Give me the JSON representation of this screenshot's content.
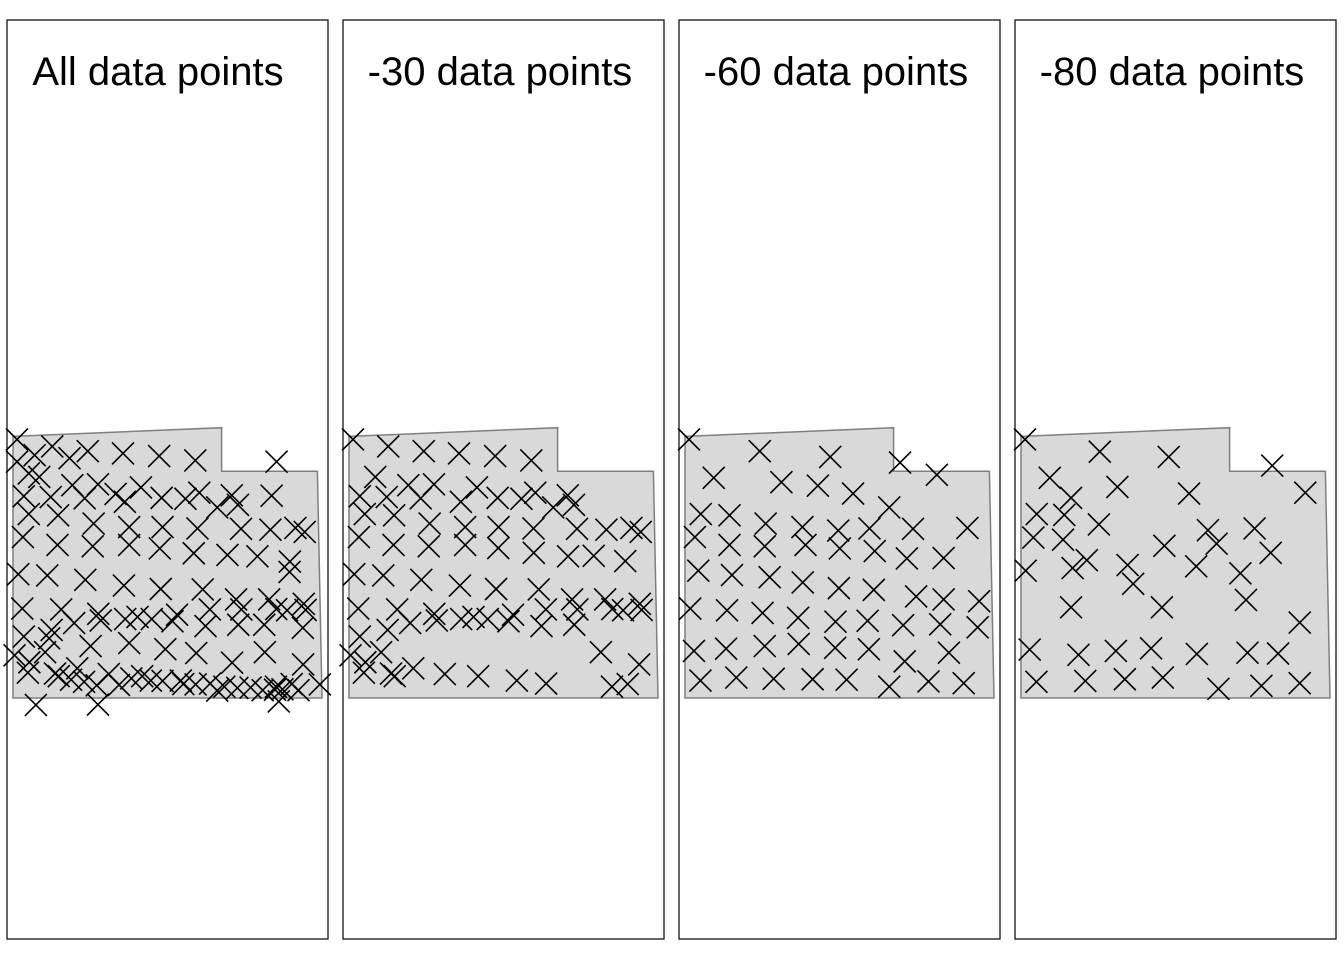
{
  "chart_data": {
    "type": "scatter",
    "marker": "x",
    "colors": {
      "region_fill": "#d9d9d9",
      "region_stroke": "#7f7f7f",
      "marker": "#000000",
      "frame": "#000000",
      "background": "#ffffff"
    },
    "xlim": [
      0,
      100
    ],
    "ylim": [
      0,
      100
    ],
    "region": [
      [
        0,
        60
      ],
      [
        67.5,
        62
      ],
      [
        67.5,
        52
      ],
      [
        98.5,
        52
      ],
      [
        100,
        0
      ],
      [
        0,
        0
      ]
    ],
    "panels": [
      {
        "title": "All data points",
        "points": [
          [
            1.3,
            59.3
          ],
          [
            12.7,
            57.7
          ],
          [
            24.2,
            56.6
          ],
          [
            35.6,
            56.1
          ],
          [
            47.3,
            55.5
          ],
          [
            59.0,
            54.5
          ],
          [
            7.0,
            55.7
          ],
          [
            18.3,
            55.0
          ],
          [
            85.3,
            54.2
          ],
          [
            1.3,
            54.2
          ],
          [
            5.1,
            51.5
          ],
          [
            8.5,
            50.7
          ],
          [
            19.2,
            48.8
          ],
          [
            33.2,
            46.8
          ],
          [
            27.5,
            49.0
          ],
          [
            41.4,
            48.3
          ],
          [
            60.3,
            47.1
          ],
          [
            70.8,
            46.5
          ],
          [
            83.7,
            46.4
          ],
          [
            3.5,
            46.3
          ],
          [
            12.2,
            46.1
          ],
          [
            23.2,
            45.8
          ],
          [
            36.2,
            45.0
          ],
          [
            48.1,
            45.9
          ],
          [
            55.8,
            45.7
          ],
          [
            66.1,
            43.7
          ],
          [
            72.8,
            44.3
          ],
          [
            5.1,
            42.2
          ],
          [
            14.6,
            41.9
          ],
          [
            26.1,
            40.0
          ],
          [
            37.6,
            39.2
          ],
          [
            48.4,
            39.2
          ],
          [
            59.7,
            38.9
          ],
          [
            73.8,
            38.8
          ],
          [
            83.3,
            38.6
          ],
          [
            94.4,
            38.1
          ],
          [
            91.4,
            39.0
          ],
          [
            3.2,
            36.9
          ],
          [
            14.4,
            35.1
          ],
          [
            25.8,
            34.8
          ],
          [
            37.6,
            35.1
          ],
          [
            47.5,
            34.3
          ],
          [
            58.5,
            33.2
          ],
          [
            69.4,
            32.8
          ],
          [
            79.1,
            32.5
          ],
          [
            89.6,
            31.3
          ],
          [
            89.5,
            28.9
          ],
          [
            1.7,
            28.4
          ],
          [
            11.1,
            28.1
          ],
          [
            23.4,
            27.1
          ],
          [
            35.9,
            25.8
          ],
          [
            47.8,
            25.0
          ],
          [
            61.4,
            24.9
          ],
          [
            72.2,
            22.6
          ],
          [
            82.9,
            22.6
          ],
          [
            94.1,
            21.6
          ],
          [
            3.0,
            20.5
          ],
          [
            15.6,
            20.3
          ],
          [
            27.6,
            19.3
          ],
          [
            40.3,
            18.6
          ],
          [
            51.6,
            17.6
          ],
          [
            62.3,
            16.5
          ],
          [
            72.9,
            16.8
          ],
          [
            81.3,
            16.8
          ],
          [
            93.8,
            16.1
          ],
          [
            11.7,
            13.7
          ],
          [
            25.1,
            11.9
          ],
          [
            37.6,
            12.6
          ],
          [
            49.3,
            11.2
          ],
          [
            59.3,
            10.3
          ],
          [
            70.9,
            8.1
          ],
          [
            81.5,
            10.5
          ],
          [
            93.9,
            7.7
          ],
          [
            4.8,
            5.8
          ],
          [
            13.6,
            5.6
          ],
          [
            20.8,
            6.8
          ],
          [
            31.0,
            5.5
          ],
          [
            41.8,
            5.0
          ],
          [
            54.3,
            4.0
          ],
          [
            63.8,
            3.3
          ],
          [
            85.1,
            2.6
          ],
          [
            90.2,
            3.2
          ],
          [
            99.3,
            3.1
          ],
          [
            0.5,
            9.8
          ],
          [
            5.3,
            8.2
          ],
          [
            10.4,
            10.5
          ],
          [
            14.8,
            5.0
          ],
          [
            18.8,
            4.2
          ],
          [
            23.0,
            3.7
          ],
          [
            27.1,
            2.9
          ],
          [
            34.3,
            3.0
          ],
          [
            38.3,
            4.5
          ],
          [
            44.6,
            4.0
          ],
          [
            48.4,
            3.9
          ],
          [
            55.1,
            3.2
          ],
          [
            59.1,
            3.1
          ],
          [
            68.4,
            2.6
          ],
          [
            72.6,
            2.3
          ],
          [
            76.9,
            2.4
          ],
          [
            80.8,
            1.8
          ],
          [
            84.8,
            1.9
          ],
          [
            87.2,
            2.0
          ],
          [
            92.4,
            1.8
          ],
          [
            3.5,
            14.1
          ],
          [
            12.5,
            15.6
          ],
          [
            19.8,
            17.2
          ],
          [
            28.4,
            17.8
          ],
          [
            36.3,
            18.1
          ],
          [
            44.9,
            18.1
          ],
          [
            53.1,
            19.1
          ],
          [
            63.7,
            20.3
          ],
          [
            73.9,
            20.3
          ],
          [
            85.2,
            20.4
          ],
          [
            88.7,
            20.1
          ],
          [
            94.7,
            20.2
          ],
          [
            7.4,
            -1.6
          ],
          [
            27.5,
            -1.5
          ],
          [
            66.1,
            1.7
          ],
          [
            86.0,
            -0.8
          ]
        ]
      },
      {
        "title": "-30 data points",
        "points": [
          [
            1.3,
            59.3
          ],
          [
            12.7,
            57.7
          ],
          [
            24.2,
            56.6
          ],
          [
            35.6,
            56.1
          ],
          [
            47.3,
            55.5
          ],
          [
            59.0,
            54.5
          ],
          [
            8.5,
            50.7
          ],
          [
            19.2,
            48.8
          ],
          [
            27.5,
            49.0
          ],
          [
            41.4,
            48.3
          ],
          [
            60.3,
            47.1
          ],
          [
            70.8,
            46.5
          ],
          [
            3.5,
            46.3
          ],
          [
            12.2,
            46.1
          ],
          [
            23.2,
            45.8
          ],
          [
            36.2,
            45.0
          ],
          [
            48.1,
            45.9
          ],
          [
            55.8,
            45.7
          ],
          [
            66.1,
            43.7
          ],
          [
            72.8,
            44.3
          ],
          [
            5.1,
            42.2
          ],
          [
            14.6,
            41.9
          ],
          [
            26.1,
            40.0
          ],
          [
            37.6,
            39.2
          ],
          [
            48.4,
            39.2
          ],
          [
            59.7,
            38.9
          ],
          [
            73.8,
            38.8
          ],
          [
            83.3,
            38.6
          ],
          [
            94.4,
            38.1
          ],
          [
            91.4,
            39.0
          ],
          [
            3.2,
            36.9
          ],
          [
            14.4,
            35.1
          ],
          [
            25.8,
            34.8
          ],
          [
            37.6,
            35.1
          ],
          [
            48.3,
            34.4
          ],
          [
            59.8,
            33.3
          ],
          [
            70.9,
            32.5
          ],
          [
            79.2,
            32.6
          ],
          [
            89.4,
            31.4
          ],
          [
            1.7,
            28.4
          ],
          [
            11.1,
            28.1
          ],
          [
            23.4,
            27.1
          ],
          [
            35.9,
            25.8
          ],
          [
            47.6,
            25.0
          ],
          [
            61.4,
            24.9
          ],
          [
            72.2,
            22.6
          ],
          [
            82.9,
            22.6
          ],
          [
            94.1,
            21.6
          ],
          [
            3.0,
            20.5
          ],
          [
            15.6,
            20.3
          ],
          [
            27.6,
            19.3
          ],
          [
            40.3,
            18.6
          ],
          [
            51.6,
            17.6
          ],
          [
            62.3,
            16.5
          ],
          [
            72.9,
            16.8
          ],
          [
            81.5,
            10.5
          ],
          [
            93.9,
            7.7
          ],
          [
            4.8,
            5.8
          ],
          [
            13.6,
            5.6
          ],
          [
            20.8,
            6.8
          ],
          [
            31.0,
            5.5
          ],
          [
            41.8,
            5.0
          ],
          [
            54.3,
            4.0
          ],
          [
            63.8,
            3.3
          ],
          [
            85.1,
            2.6
          ],
          [
            90.2,
            3.2
          ],
          [
            0.5,
            9.8
          ],
          [
            5.3,
            8.2
          ],
          [
            10.4,
            10.5
          ],
          [
            14.8,
            5.0
          ],
          [
            3.5,
            14.1
          ],
          [
            12.5,
            15.6
          ],
          [
            19.8,
            17.2
          ],
          [
            28.4,
            17.8
          ],
          [
            36.3,
            18.1
          ],
          [
            44.9,
            18.1
          ],
          [
            53.1,
            19.1
          ],
          [
            63.7,
            20.3
          ],
          [
            73.9,
            20.3
          ],
          [
            85.2,
            20.4
          ],
          [
            88.7,
            20.1
          ],
          [
            94.7,
            20.2
          ]
        ]
      },
      {
        "title": "-60 data points",
        "points": [
          [
            1.3,
            59.3
          ],
          [
            24.2,
            56.6
          ],
          [
            47.0,
            55.3
          ],
          [
            69.6,
            54.0
          ],
          [
            81.5,
            51.2
          ],
          [
            9.3,
            50.5
          ],
          [
            31.2,
            49.5
          ],
          [
            43.0,
            48.7
          ],
          [
            54.4,
            46.9
          ],
          [
            66.1,
            43.7
          ],
          [
            5.1,
            42.2
          ],
          [
            14.4,
            41.9
          ],
          [
            26.1,
            40.0
          ],
          [
            38.0,
            39.2
          ],
          [
            49.6,
            38.4
          ],
          [
            59.7,
            38.9
          ],
          [
            73.8,
            38.8
          ],
          [
            91.4,
            39.0
          ],
          [
            3.2,
            36.9
          ],
          [
            14.4,
            35.1
          ],
          [
            25.8,
            34.8
          ],
          [
            39.0,
            35.1
          ],
          [
            50.1,
            34.3
          ],
          [
            61.4,
            33.7
          ],
          [
            71.8,
            32.0
          ],
          [
            83.7,
            32.1
          ],
          [
            4.3,
            29.2
          ],
          [
            15.2,
            28.2
          ],
          [
            27.4,
            27.7
          ],
          [
            38.1,
            26.5
          ],
          [
            49.8,
            25.2
          ],
          [
            61.1,
            24.8
          ],
          [
            74.8,
            23.3
          ],
          [
            83.7,
            22.6
          ],
          [
            95.2,
            22.2
          ],
          [
            1.7,
            20.5
          ],
          [
            13.6,
            20.1
          ],
          [
            25.1,
            19.5
          ],
          [
            36.6,
            18.4
          ],
          [
            48.7,
            17.5
          ],
          [
            59.1,
            17.7
          ],
          [
            70.6,
            16.7
          ],
          [
            82.6,
            16.9
          ],
          [
            94.7,
            16.2
          ],
          [
            2.9,
            10.8
          ],
          [
            13.3,
            11.3
          ],
          [
            25.8,
            11.9
          ],
          [
            36.8,
            12.4
          ],
          [
            48.6,
            11.5
          ],
          [
            59.5,
            11.2
          ],
          [
            71.1,
            8.4
          ],
          [
            85.4,
            10.4
          ],
          [
            5.0,
            4.0
          ],
          [
            16.6,
            4.7
          ],
          [
            28.7,
            4.4
          ],
          [
            41.3,
            4.3
          ],
          [
            52.3,
            4.2
          ],
          [
            66.1,
            2.6
          ],
          [
            78.8,
            3.8
          ],
          [
            90.2,
            3.4
          ]
        ]
      },
      {
        "title": "-80 data points",
        "points": [
          [
            1.3,
            59.3
          ],
          [
            25.5,
            56.5
          ],
          [
            47.8,
            55.3
          ],
          [
            81.3,
            53.3
          ],
          [
            9.3,
            50.5
          ],
          [
            31.2,
            48.4
          ],
          [
            54.4,
            46.9
          ],
          [
            92.0,
            47.1
          ],
          [
            16.2,
            45.9
          ],
          [
            5.1,
            42.2
          ],
          [
            14.0,
            42.0
          ],
          [
            25.2,
            39.8
          ],
          [
            60.5,
            38.5
          ],
          [
            75.6,
            38.9
          ],
          [
            4.0,
            36.8
          ],
          [
            13.6,
            36.3
          ],
          [
            63.3,
            35.4
          ],
          [
            80.8,
            33.3
          ],
          [
            46.4,
            34.9
          ],
          [
            21.3,
            31.6
          ],
          [
            1.5,
            29.2
          ],
          [
            16.7,
            29.8
          ],
          [
            34.5,
            30.5
          ],
          [
            56.7,
            30.2
          ],
          [
            71.0,
            28.6
          ],
          [
            45.6,
            20.8
          ],
          [
            16.2,
            20.8
          ],
          [
            90.2,
            17.3
          ],
          [
            72.8,
            22.5
          ],
          [
            36.3,
            26.2
          ],
          [
            2.8,
            11.1
          ],
          [
            18.6,
            9.9
          ],
          [
            30.7,
            10.8
          ],
          [
            42.1,
            11.4
          ],
          [
            56.9,
            10.1
          ],
          [
            73.3,
            10.4
          ],
          [
            83.2,
            10.2
          ],
          [
            5.0,
            3.7
          ],
          [
            20.8,
            3.9
          ],
          [
            33.6,
            4.3
          ],
          [
            45.9,
            4.7
          ],
          [
            63.9,
            2.1
          ],
          [
            77.8,
            2.8
          ],
          [
            90.2,
            3.4
          ]
        ]
      }
    ]
  }
}
